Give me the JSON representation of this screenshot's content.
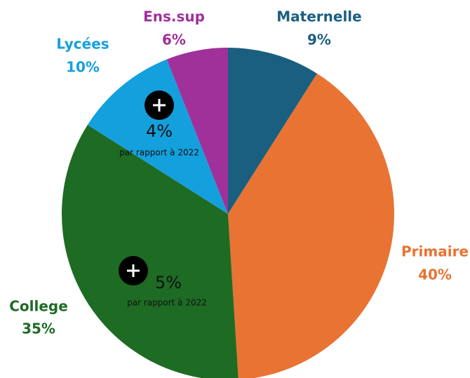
{
  "chart_data": {
    "type": "pie",
    "categories": [
      "Maternelle",
      "Primaire",
      "College",
      "Lycées",
      "Ens.sup"
    ],
    "values": [
      9,
      40,
      35,
      10,
      6
    ],
    "value_labels": [
      "9%",
      "40%",
      "35%",
      "10%",
      "6%"
    ],
    "colors": [
      "#1a5f80",
      "#e87333",
      "#1e6b24",
      "#14a0dc",
      "#a0309a"
    ],
    "annotations": [
      {
        "text": "4%",
        "note": "par rapport à 2022"
      },
      {
        "text": "5%",
        "note": "par rapport à 2022"
      }
    ]
  }
}
